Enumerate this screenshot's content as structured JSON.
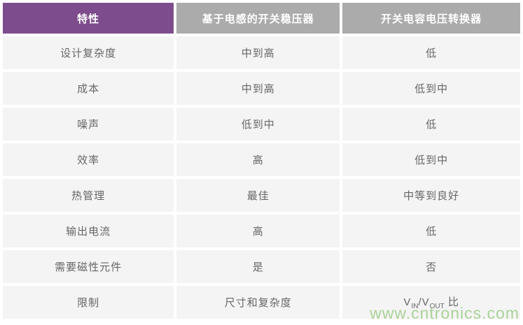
{
  "colors": {
    "header_feature_bg": "#7d4c8c",
    "header_col_bg": "#ababab",
    "header_text": "#ffffff",
    "cell_bg": "#f5f4f5",
    "cell_text": "#666666",
    "watermark_color": "#aad397",
    "page_bg": "#ffffff"
  },
  "table": {
    "headers": [
      {
        "label": "特性"
      },
      {
        "label": "基于电感的开关稳压器"
      },
      {
        "label": "开关电容电压转换器"
      }
    ],
    "rows": [
      {
        "feature": "设计复杂度",
        "inductor": "中到高",
        "switched_cap": "低"
      },
      {
        "feature": "成本",
        "inductor": "中到高",
        "switched_cap": "低到中"
      },
      {
        "feature": "噪声",
        "inductor": "低到中",
        "switched_cap": "低"
      },
      {
        "feature": "效率",
        "inductor": "高",
        "switched_cap": "低到中"
      },
      {
        "feature": "热管理",
        "inductor": "最佳",
        "switched_cap": "中等到良好"
      },
      {
        "feature": "输出电流",
        "inductor": "高",
        "switched_cap": "低"
      },
      {
        "feature": "需要磁性元件",
        "inductor": "是",
        "switched_cap": "否"
      },
      {
        "feature": "限制",
        "inductor": "尺寸和复杂度",
        "switched_cap": [
          {
            "t": "V"
          },
          {
            "t": "IN",
            "sub": true
          },
          {
            "t": "/V"
          },
          {
            "t": "OUT",
            "sub": true
          },
          {
            "t": " 比"
          }
        ]
      }
    ]
  },
  "watermark": {
    "text": "www.cntronics.com"
  }
}
